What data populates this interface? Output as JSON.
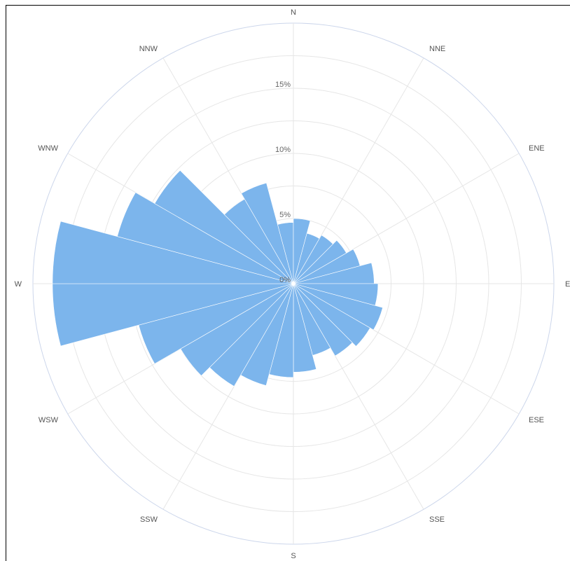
{
  "chart_data": {
    "type": "polar-bar",
    "title": "",
    "categories": [
      "N",
      "NNE",
      "ENE",
      "E",
      "ESE",
      "SSE",
      "S",
      "SSW",
      "WSW",
      "W",
      "WNW",
      "NNW"
    ],
    "sectors": [
      {
        "label": "N",
        "values": [
          4.7,
          5.0
        ]
      },
      {
        "label": "NNE",
        "values": [
          4.0,
          4.3
        ]
      },
      {
        "label": "ENE",
        "values": [
          4.7,
          5.3
        ]
      },
      {
        "label": "E",
        "values": [
          6.2,
          6.5
        ]
      },
      {
        "label": "ESE",
        "values": [
          7.1,
          6.8
        ]
      },
      {
        "label": "SSE",
        "values": [
          6.4,
          5.7
        ]
      },
      {
        "label": "S",
        "values": [
          6.8,
          7.2
        ]
      },
      {
        "label": "SSW",
        "values": [
          8.1,
          9.1
        ]
      },
      {
        "label": "WSW",
        "values": [
          10.0,
          12.3
        ]
      },
      {
        "label": "W",
        "values": [
          18.5,
          18.5
        ]
      },
      {
        "label": "WNW",
        "values": [
          14.0,
          12.3
        ]
      },
      {
        "label": "NNW",
        "values": [
          7.5,
          8.0
        ]
      }
    ],
    "radial_ticks": [
      "0%",
      "5%",
      "10%",
      "15%"
    ],
    "radial_tick_values": [
      0,
      5,
      10,
      15
    ],
    "rmax": 20,
    "grid": true,
    "color": "#7cb5ec"
  }
}
